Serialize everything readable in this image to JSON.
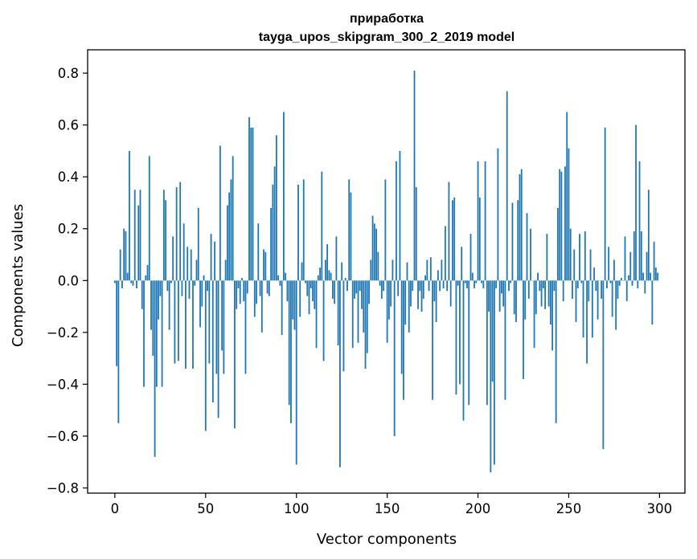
{
  "chart_data": {
    "type": "bar",
    "title_line1": "приработка",
    "title_line2": "tayga_upos_skipgram_300_2_2019 model",
    "xlabel": "Vector components",
    "ylabel": "Components values",
    "xlim": [
      -15,
      314
    ],
    "ylim": [
      -0.82,
      0.89
    ],
    "xticks": [
      0,
      50,
      100,
      150,
      200,
      250,
      300
    ],
    "xtick_labels": [
      "0",
      "50",
      "100",
      "150",
      "200",
      "250",
      "300"
    ],
    "yticks": [
      -0.8,
      -0.6,
      -0.4,
      -0.2,
      0.0,
      0.2,
      0.4,
      0.6,
      0.8
    ],
    "ytick_labels": [
      "−0.8",
      "−0.6",
      "−0.4",
      "−0.2",
      "0.0",
      "0.2",
      "0.4",
      "0.6",
      "0.8"
    ],
    "bar_color": "#1f77b4",
    "grid": false,
    "x": "0..299",
    "values": [
      -0.01,
      -0.33,
      -0.55,
      0.12,
      -0.03,
      0.2,
      0.19,
      0.03,
      0.5,
      -0.01,
      -0.02,
      0.35,
      -0.03,
      0.29,
      0.35,
      -0.11,
      -0.41,
      0.02,
      0.06,
      0.48,
      -0.19,
      -0.29,
      -0.68,
      -0.41,
      -0.15,
      -0.06,
      -0.41,
      0.35,
      0.31,
      -0.04,
      -0.19,
      -0.01,
      0.17,
      -0.32,
      0.36,
      -0.31,
      0.38,
      -0.06,
      0.22,
      -0.34,
      0.13,
      -0.07,
      0.12,
      -0.34,
      -0.02,
      0.08,
      0.28,
      -0.18,
      -0.1,
      0.02,
      -0.58,
      -0.04,
      -0.32,
      0.18,
      -0.47,
      0.15,
      -0.36,
      -0.53,
      0.52,
      -0.27,
      -0.36,
      0.08,
      0.29,
      0.34,
      0.39,
      0.48,
      -0.57,
      -0.11,
      -0.03,
      -0.09,
      0.01,
      -0.08,
      -0.36,
      -0.05,
      0.63,
      0.59,
      0.59,
      -0.14,
      -0.09,
      0.22,
      -0.06,
      -0.2,
      0.12,
      0.11,
      -0.05,
      -0.06,
      0.28,
      0.37,
      0.44,
      0.56,
      0.02,
      -0.02,
      -0.21,
      0.65,
      0.03,
      -0.08,
      -0.48,
      -0.55,
      -0.15,
      -0.19,
      -0.71,
      0.37,
      -0.14,
      0.07,
      0.39,
      -0.01,
      -0.06,
      -0.13,
      -0.03,
      -0.08,
      -0.11,
      -0.26,
      0.02,
      0.05,
      0.42,
      -0.31,
      0.08,
      0.14,
      0.04,
      0.03,
      -0.07,
      -0.09,
      0.17,
      -0.25,
      -0.72,
      0.07,
      -0.35,
      0.01,
      -0.04,
      0.39,
      0.34,
      -0.26,
      -0.07,
      -0.05,
      -0.24,
      -0.04,
      -0.11,
      -0.2,
      -0.34,
      -0.28,
      -0.09,
      0.08,
      0.25,
      0.22,
      0.2,
      0.11,
      -0.02,
      -0.07,
      -0.04,
      0.39,
      -0.24,
      -0.15,
      -0.1,
      0.08,
      -0.6,
      0.46,
      -0.06,
      0.5,
      -0.36,
      -0.46,
      -0.17,
      0.07,
      -0.2,
      -0.1,
      -0.04,
      0.81,
      0.36,
      -0.11,
      -0.04,
      -0.12,
      -0.07,
      0.02,
      0.08,
      -0.04,
      0.09,
      -0.46,
      -0.08,
      -0.16,
      0.04,
      -0.04,
      0.08,
      -0.03,
      0.21,
      -0.04,
      0.38,
      -0.1,
      0.31,
      0.32,
      -0.44,
      -0.02,
      -0.4,
      0.13,
      -0.54,
      -0.01,
      -0.03,
      -0.48,
      0.18,
      0.03,
      -0.03,
      -0.01,
      0.46,
      0.32,
      -0.01,
      -0.03,
      0.46,
      -0.48,
      -0.12,
      -0.74,
      -0.39,
      -0.71,
      -0.03,
      0.51,
      -0.12,
      -0.05,
      -0.1,
      -0.46,
      0.73,
      -0.04,
      -0.01,
      0.3,
      -0.13,
      -0.16,
      0.31,
      0.41,
      0.43,
      -0.38,
      -0.15,
      0.26,
      -0.07,
      0.2,
      0.0,
      -0.26,
      -0.13,
      0.03,
      -0.04,
      -0.1,
      -0.03,
      -0.11,
      0.18,
      -0.1,
      -0.17,
      -0.27,
      -0.04,
      -0.55,
      0.28,
      0.43,
      0.42,
      -0.08,
      0.44,
      0.65,
      0.51,
      0.2,
      -0.07,
      0.12,
      -0.16,
      -0.03,
      0.18,
      -0.01,
      -0.22,
      0.19,
      -0.32,
      -0.08,
      0.12,
      -0.22,
      0.05,
      -0.04,
      -0.15,
      0.0,
      -0.07,
      -0.65,
      0.59,
      -0.03,
      0.13,
      -0.01,
      -0.14,
      0.08,
      -0.19,
      -0.07,
      -0.02,
      0.01,
      0.0,
      0.17,
      -0.08,
      0.02,
      0.11,
      -0.02,
      0.19,
      0.6,
      -0.03,
      0.46,
      0.19,
      0.03,
      -0.05,
      0.11,
      0.35,
      0.03,
      -0.17,
      0.15,
      0.05,
      0.03
    ]
  }
}
